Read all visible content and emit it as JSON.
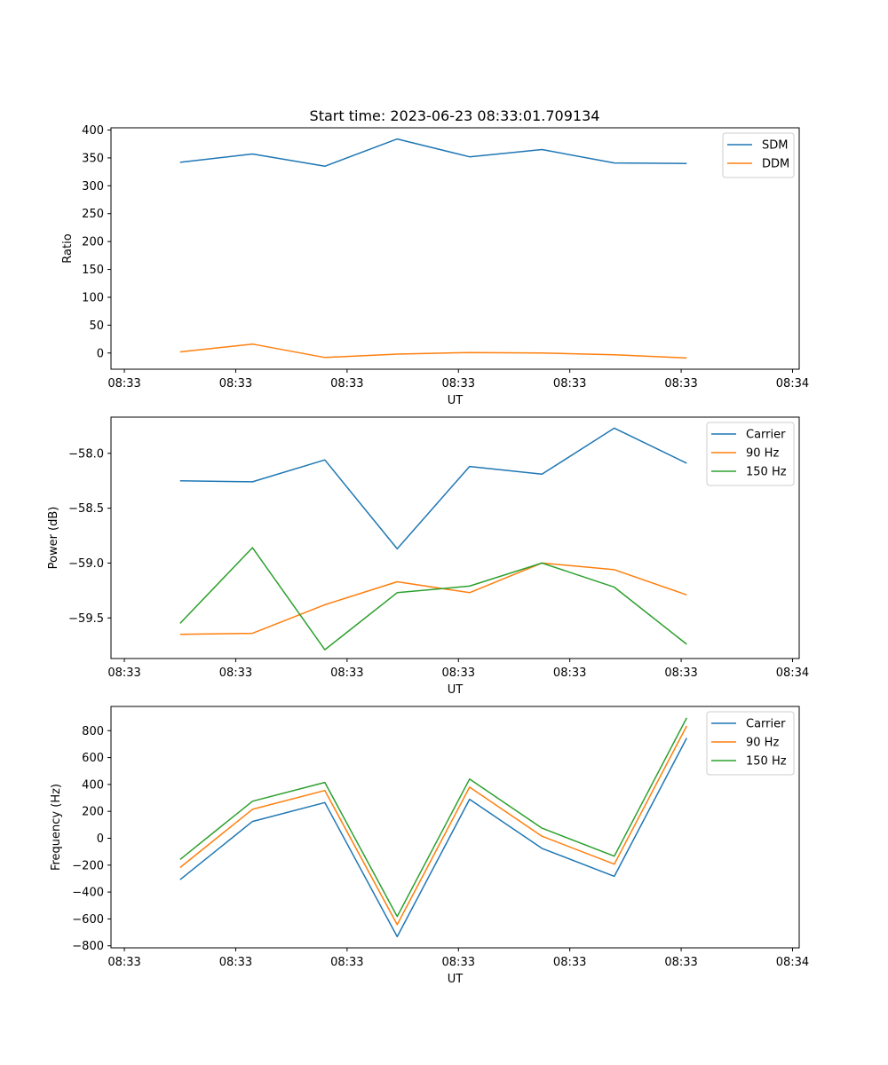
{
  "figure": {
    "title": "Start time: 2023-06-23 08:33:01.709134"
  },
  "chart_data": [
    {
      "type": "line",
      "title": "Start time: 2023-06-23 08:33:01.709134",
      "xlabel": "UT",
      "ylabel": "Ratio",
      "x_ticks": [
        "08:33",
        "08:33",
        "08:33",
        "08:33",
        "08:33",
        "08:33",
        "08:34"
      ],
      "y_ticks": [
        0,
        50,
        100,
        150,
        200,
        250,
        300,
        350,
        400
      ],
      "ylim": [
        -29,
        404
      ],
      "x": [
        0.5,
        1.15,
        1.8,
        2.45,
        3.1,
        3.75,
        4.4,
        5.05
      ],
      "xlim": [
        -0.12,
        6.06
      ],
      "legend": "top-right",
      "series": [
        {
          "name": "SDM",
          "color": "#1f77b4",
          "values": [
            342,
            357,
            335,
            384,
            352,
            365,
            341,
            340
          ]
        },
        {
          "name": "DDM",
          "color": "#ff7f0e",
          "values": [
            2,
            16,
            -8,
            -2,
            1,
            0,
            -3,
            -9
          ]
        }
      ]
    },
    {
      "type": "line",
      "xlabel": "UT",
      "ylabel": "Power (dB)",
      "x_ticks": [
        "08:33",
        "08:33",
        "08:33",
        "08:33",
        "08:33",
        "08:33",
        "08:34"
      ],
      "y_ticks": [
        "−58.0",
        "−58.5",
        "−59.0",
        "−59.5"
      ],
      "y_tick_values": [
        -58.0,
        -58.5,
        -59.0,
        -59.5
      ],
      "ylim": [
        -59.87,
        -57.67
      ],
      "x": [
        0.5,
        1.15,
        1.8,
        2.45,
        3.1,
        3.75,
        4.4,
        5.05
      ],
      "xlim": [
        -0.12,
        6.06
      ],
      "legend": "top-right",
      "series": [
        {
          "name": "Carrier",
          "color": "#1f77b4",
          "values": [
            -58.25,
            -58.26,
            -58.06,
            -58.87,
            -58.12,
            -58.19,
            -57.77,
            -58.09
          ]
        },
        {
          "name": "90 Hz",
          "color": "#ff7f0e",
          "values": [
            -59.65,
            -59.64,
            -59.38,
            -59.17,
            -59.27,
            -59.0,
            -59.06,
            -59.29
          ]
        },
        {
          "name": "150 Hz",
          "color": "#2ca02c",
          "values": [
            -59.55,
            -58.86,
            -59.79,
            -59.27,
            -59.21,
            -59.0,
            -59.22,
            -59.74
          ]
        }
      ]
    },
    {
      "type": "line",
      "xlabel": "UT",
      "ylabel": "Frequency (Hz)",
      "x_ticks": [
        "08:33",
        "08:33",
        "08:33",
        "08:33",
        "08:33",
        "08:33",
        "08:34"
      ],
      "y_ticks": [
        "−800",
        "−600",
        "−400",
        "−200",
        "0",
        "200",
        "400",
        "600",
        "800"
      ],
      "y_tick_values": [
        -800,
        -600,
        -400,
        -200,
        0,
        200,
        400,
        600,
        800
      ],
      "ylim": [
        -815,
        980
      ],
      "x": [
        0.5,
        1.15,
        1.8,
        2.45,
        3.1,
        3.75,
        4.4,
        5.05
      ],
      "xlim": [
        -0.12,
        6.06
      ],
      "legend": "top-right",
      "series": [
        {
          "name": "Carrier",
          "color": "#1f77b4",
          "values": [
            -308,
            125,
            265,
            -732,
            290,
            -75,
            -283,
            745
          ]
        },
        {
          "name": "90 Hz",
          "color": "#ff7f0e",
          "values": [
            -218,
            215,
            355,
            -642,
            380,
            15,
            -193,
            835
          ]
        },
        {
          "name": "150 Hz",
          "color": "#2ca02c",
          "values": [
            -158,
            275,
            415,
            -582,
            440,
            75,
            -133,
            895
          ]
        }
      ]
    }
  ]
}
